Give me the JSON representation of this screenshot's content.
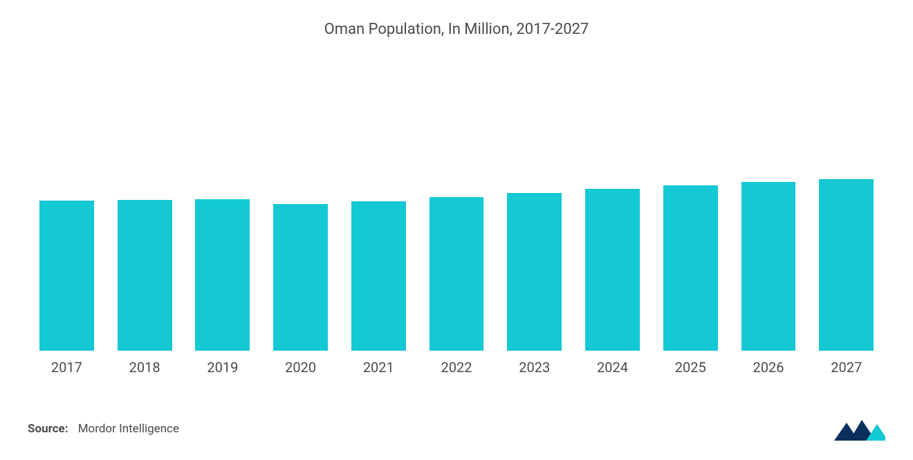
{
  "chart": {
    "type": "bar",
    "title": "Oman Population, In Million, 2017-2027",
    "title_fontsize": 22,
    "title_color": "#4a4a4a",
    "categories": [
      "2017",
      "2018",
      "2019",
      "2020",
      "2021",
      "2022",
      "2023",
      "2024",
      "2025",
      "2026",
      "2027"
    ],
    "values": [
      4.55,
      4.57,
      4.58,
      4.45,
      4.52,
      4.65,
      4.78,
      4.9,
      5.0,
      5.1,
      5.2
    ],
    "ylim_max": 8.0,
    "bar_color": "#14c8d4",
    "bar_width_pct": 70,
    "background_color": "#ffffff",
    "xlabel_fontsize": 20,
    "xlabel_color": "#4a4a4a"
  },
  "source": {
    "label": "Source:",
    "value": "Mordor Intelligence",
    "fontsize": 17,
    "color": "#4a4a4a"
  },
  "logo": {
    "primary_color": "#0a2f5c",
    "accent_color": "#14c8d4"
  }
}
